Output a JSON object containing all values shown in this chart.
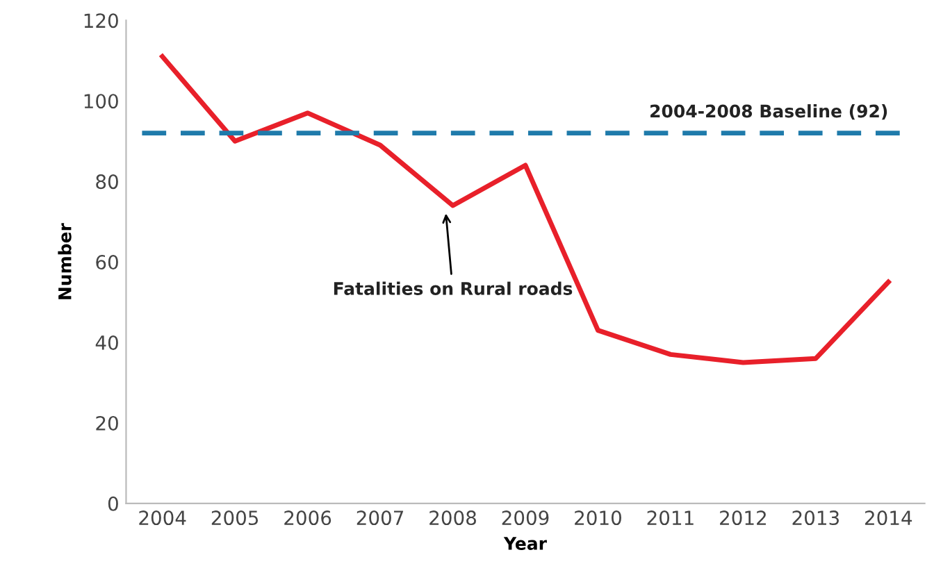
{
  "chart_data": {
    "type": "line",
    "xlabel": "Year",
    "ylabel": "Number",
    "categories": [
      "2004",
      "2005",
      "2006",
      "2007",
      "2008",
      "2009",
      "2010",
      "2011",
      "2012",
      "2013",
      "2014"
    ],
    "series": [
      {
        "color": "#e8202a",
        "values": [
          111,
          90,
          97,
          89,
          74,
          84,
          43,
          37,
          35,
          36,
          55
        ]
      }
    ],
    "ylim": [
      0,
      120
    ],
    "yticks": [
      0,
      20,
      40,
      60,
      80,
      100,
      120
    ],
    "ref_lines": [
      {
        "axis": "y",
        "value": 92,
        "label": "2004-2008 Baseline (92)",
        "color": "#1f7bab",
        "line_style": "dashed"
      }
    ],
    "annotations": [
      {
        "text": "Fatalities on Rural roads",
        "x": "2008",
        "y": 74
      }
    ],
    "grid": false,
    "legend": false,
    "marker": "none",
    "line_style": "solid"
  }
}
